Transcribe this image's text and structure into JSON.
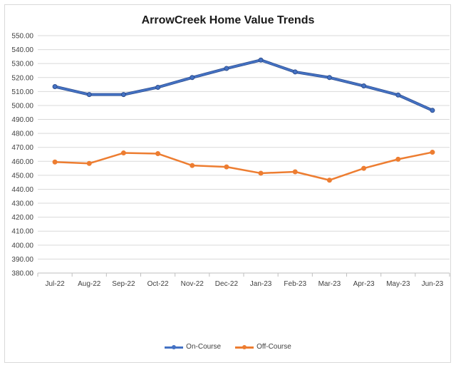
{
  "chart_data": {
    "type": "line",
    "title": "ArrowCreek Home Value Trends",
    "xlabel": "",
    "ylabel": "",
    "categories": [
      "Jul-22",
      "Aug-22",
      "Sep-22",
      "Oct-22",
      "Nov-22",
      "Dec-22",
      "Jan-23",
      "Feb-23",
      "Mar-23",
      "Apr-23",
      "May-23",
      "Jun-23"
    ],
    "ylim": [
      380,
      550
    ],
    "ytick_step": 10,
    "ytick_labels": [
      "380.00",
      "390.00",
      "400.00",
      "410.00",
      "420.00",
      "430.00",
      "440.00",
      "450.00",
      "460.00",
      "470.00",
      "480.00",
      "490.00",
      "500.00",
      "510.00",
      "520.00",
      "530.00",
      "540.00",
      "550.00"
    ],
    "grid": true,
    "legend_position": "bottom",
    "series": [
      {
        "name": "On-Course",
        "color": "#4472c4",
        "values": [
          513.5,
          507.8,
          507.8,
          513.0,
          520.0,
          526.5,
          532.5,
          524.0,
          520.0,
          514.0,
          507.5,
          496.5
        ]
      },
      {
        "name": "Off-Course",
        "color": "#ed7d31",
        "values": [
          459.5,
          458.5,
          466.0,
          465.5,
          457.0,
          456.0,
          451.5,
          452.5,
          446.5,
          455.0,
          461.5,
          466.5
        ]
      }
    ]
  }
}
